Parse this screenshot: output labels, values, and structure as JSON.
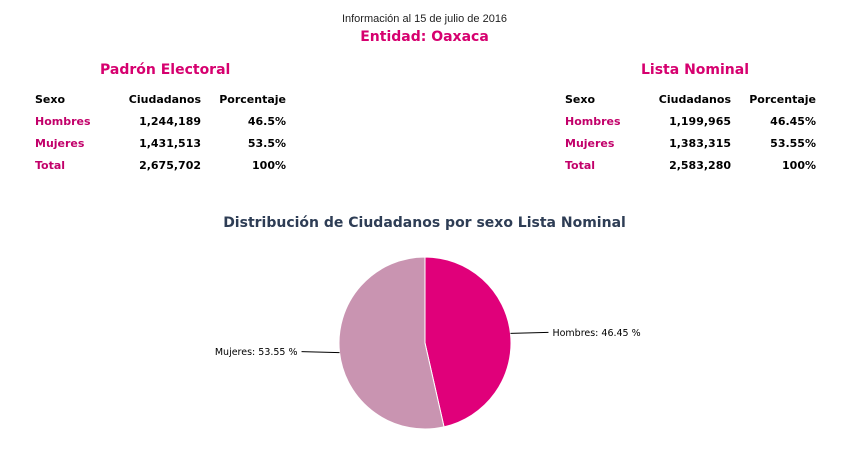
{
  "header": {
    "info": "Información al 15 de julio de 2016",
    "entity": "Entidad: Oaxaca"
  },
  "padron": {
    "title": "Padrón Electoral",
    "columns": [
      "Sexo",
      "Ciudadanos",
      "Porcentaje"
    ],
    "rows": [
      {
        "label": "Hombres",
        "count": "1,244,189",
        "pct": "46.5%"
      },
      {
        "label": "Mujeres",
        "count": "1,431,513",
        "pct": "53.5%"
      },
      {
        "label": "Total",
        "count": "2,675,702",
        "pct": "100%"
      }
    ]
  },
  "lista": {
    "title": "Lista Nominal",
    "columns": [
      "Sexo",
      "Ciudadanos",
      "Porcentaje"
    ],
    "rows": [
      {
        "label": "Hombres",
        "count": "1,199,965",
        "pct": "46.45%"
      },
      {
        "label": "Mujeres",
        "count": "1,383,315",
        "pct": "53.55%"
      },
      {
        "label": "Total",
        "count": "2,583,280",
        "pct": "100%"
      }
    ]
  },
  "chart_data": {
    "type": "pie",
    "title": "Distribución de Ciudadanos por sexo Lista Nominal",
    "slices": [
      {
        "name": "Hombres",
        "value": 46.45,
        "label": "Hombres: 46.45 %",
        "color": "#e0007a"
      },
      {
        "name": "Mujeres",
        "value": 53.55,
        "label": "Mujeres: 53.55 %",
        "color": "#c994b1"
      }
    ]
  }
}
